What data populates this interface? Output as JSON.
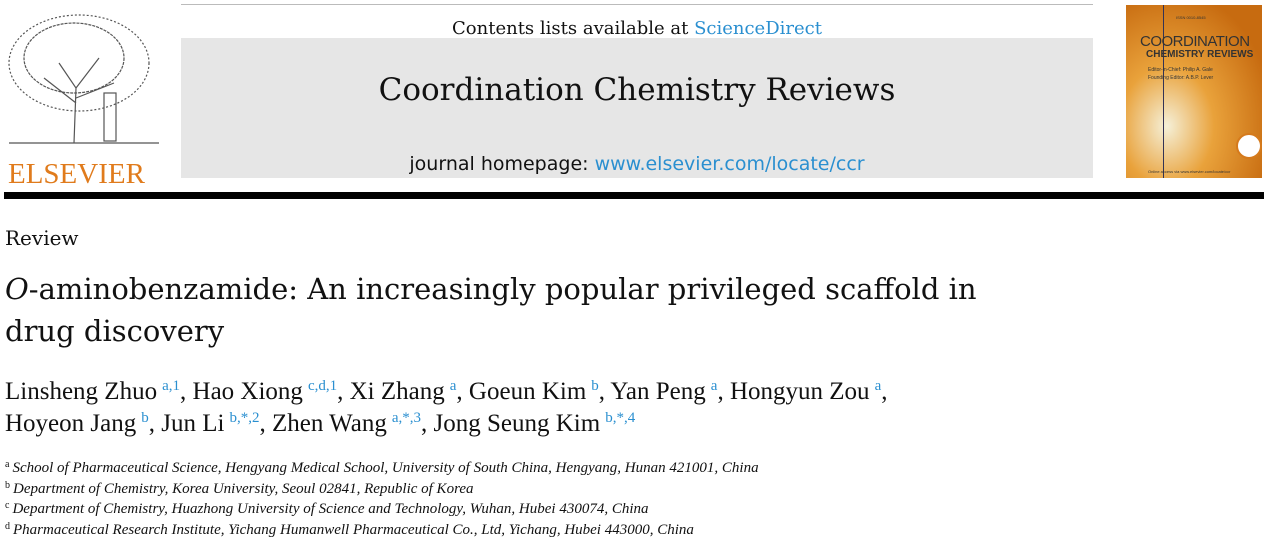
{
  "publisher": {
    "name": "ELSEVIER"
  },
  "header": {
    "contents_prefix": "Contents lists available at ",
    "contents_link": "ScienceDirect",
    "journal_title": "Coordination Chemistry Reviews",
    "homepage_prefix": "journal homepage: ",
    "homepage_link": "www.elsevier.com/locate/ccr"
  },
  "cover": {
    "line1": "COORDINATION",
    "line2": "CHEMISTRY REVIEWS",
    "editor": "Editor-in-Chief: Philip A. Gale",
    "founding": "Founding Editor: A.B.P. Lever",
    "issn": "ISSN 0010-8545",
    "online": "Online access via www.elsevier.com/locate/ccr"
  },
  "article": {
    "type": "Review",
    "title_italic": "O",
    "title_rest": "-aminobenzamide: An increasingly popular privileged scaffold in drug discovery",
    "authors": [
      {
        "name": "Linsheng Zhuo",
        "sup": "a,1"
      },
      {
        "name": "Hao Xiong",
        "sup": "c,d,1"
      },
      {
        "name": "Xi Zhang",
        "sup": "a"
      },
      {
        "name": "Goeun Kim",
        "sup": "b"
      },
      {
        "name": "Yan Peng",
        "sup": "a"
      },
      {
        "name": "Hongyun Zou",
        "sup": "a"
      },
      {
        "name": "Hoyeon Jang",
        "sup": "b"
      },
      {
        "name": "Jun Li",
        "sup": "b,*,2"
      },
      {
        "name": "Zhen Wang",
        "sup": "a,*,3"
      },
      {
        "name": "Jong Seung Kim",
        "sup": "b,*,4"
      }
    ],
    "affiliations": [
      {
        "key": "a",
        "text": "School of Pharmaceutical Science, Hengyang Medical School, University of South China, Hengyang, Hunan 421001, China"
      },
      {
        "key": "b",
        "text": "Department of Chemistry, Korea University, Seoul 02841, Republic of Korea"
      },
      {
        "key": "c",
        "text": "Department of Chemistry, Huazhong University of Science and Technology, Wuhan, Hubei 430074, China"
      },
      {
        "key": "d",
        "text": "Pharmaceutical Research Institute, Yichang Humanwell Pharmaceutical Co., Ltd, Yichang, Hubei 443000, China"
      }
    ]
  },
  "colors": {
    "link": "#2a8fd0",
    "elsevier": "#e07b1c",
    "banner": "#e6e6e6"
  }
}
